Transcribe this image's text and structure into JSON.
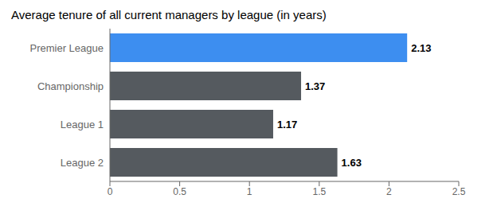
{
  "chart_data": {
    "type": "bar",
    "title": "Average tenure of all current managers by league (in years)",
    "orientation": "horizontal",
    "categories": [
      "Premier League",
      "Championship",
      "League 1",
      "League 2"
    ],
    "values": [
      2.13,
      1.37,
      1.17,
      1.63
    ],
    "colors": [
      "#3d8ef0",
      "#555a5f",
      "#555a5f",
      "#555a5f"
    ],
    "xlim": [
      0,
      2.5
    ],
    "xticks": [
      0,
      0.5,
      1,
      1.5,
      2,
      2.5
    ],
    "data_labels": true,
    "grid": false
  }
}
